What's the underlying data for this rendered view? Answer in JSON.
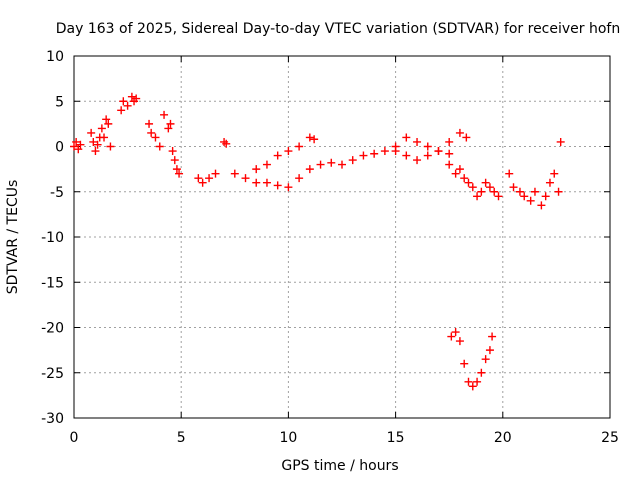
{
  "chart_data": {
    "type": "scatter",
    "title": "Day 163 of 2025, Sidereal Day-to-day VTEC variation (SDTVAR) for receiver hofn",
    "xlabel": "GPS time / hours",
    "ylabel": "SDTVAR / TECUs",
    "xlim": [
      0,
      25
    ],
    "ylim": [
      -30,
      10
    ],
    "xticks": [
      0,
      5,
      10,
      15,
      20,
      25
    ],
    "yticks": [
      10,
      5,
      0,
      -5,
      -10,
      -15,
      -20,
      -25,
      -30
    ],
    "grid": true,
    "marker": "+",
    "color": "#ff0000",
    "series": [
      {
        "name": "SDTVAR",
        "x": [
          0.0,
          0.1,
          0.2,
          0.3,
          0.8,
          0.9,
          1.0,
          1.1,
          1.2,
          1.3,
          1.4,
          1.5,
          1.6,
          1.7,
          2.2,
          2.3,
          2.5,
          2.7,
          2.8,
          2.9,
          3.5,
          3.6,
          3.8,
          4.0,
          4.2,
          4.4,
          4.5,
          4.6,
          4.7,
          4.8,
          4.9,
          5.8,
          6.0,
          6.3,
          6.6,
          7.0,
          7.1,
          7.5,
          8.0,
          8.5,
          9.0,
          9.5,
          10.0,
          8.5,
          9.0,
          9.5,
          10.0,
          10.5,
          11.0,
          11.2,
          10.5,
          11.0,
          11.5,
          12.0,
          12.5,
          13.0,
          13.5,
          14.0,
          14.5,
          15.0,
          15.5,
          16.0,
          15.0,
          15.5,
          16.0,
          16.5,
          17.0,
          17.5,
          16.5,
          17.0,
          17.5,
          18.0,
          18.3,
          17.5,
          17.8,
          18.0,
          18.2,
          18.4,
          18.6,
          18.8,
          19.0,
          19.2,
          19.4,
          19.6,
          19.8,
          20.3,
          20.5,
          20.8,
          21.0,
          21.3,
          21.5,
          21.8,
          22.0,
          22.2,
          22.4,
          22.6,
          22.7,
          17.6,
          17.8,
          18.0,
          18.2,
          18.4,
          18.6,
          18.8,
          19.0,
          19.2,
          19.4,
          19.5
        ],
        "y": [
          0.0,
          0.5,
          -0.3,
          0.2,
          1.5,
          0.5,
          -0.5,
          0.2,
          1.0,
          2.0,
          1.0,
          3.0,
          2.5,
          0.0,
          4.0,
          5.0,
          4.5,
          5.5,
          5.0,
          5.3,
          2.5,
          1.5,
          1.0,
          0.0,
          3.5,
          2.0,
          2.5,
          -0.5,
          -1.5,
          -2.5,
          -3.0,
          -3.5,
          -4.0,
          -3.5,
          -3.0,
          0.5,
          0.3,
          -3.0,
          -3.5,
          -4.0,
          -4.0,
          -4.3,
          -4.5,
          -2.5,
          -2.0,
          -1.0,
          -0.5,
          0.0,
          1.0,
          0.8,
          -3.5,
          -2.5,
          -2.0,
          -1.8,
          -2.0,
          -1.5,
          -1.0,
          -0.8,
          -0.5,
          -0.5,
          -1.0,
          -1.5,
          0.0,
          1.0,
          0.5,
          0.0,
          -0.5,
          -0.8,
          -1.0,
          -0.5,
          0.5,
          1.5,
          1.0,
          -2.0,
          -3.0,
          -2.5,
          -3.5,
          -4.0,
          -4.5,
          -5.5,
          -5.0,
          -4.0,
          -4.5,
          -5.0,
          -5.5,
          -3.0,
          -4.5,
          -5.0,
          -5.5,
          -6.0,
          -5.0,
          -6.5,
          -5.5,
          -4.0,
          -3.0,
          -5.0,
          0.5,
          -21.0,
          -20.5,
          -21.5,
          -24.0,
          -26.0,
          -26.5,
          -26.0,
          -25.0,
          -23.5,
          -22.5,
          -21.0
        ]
      }
    ]
  }
}
